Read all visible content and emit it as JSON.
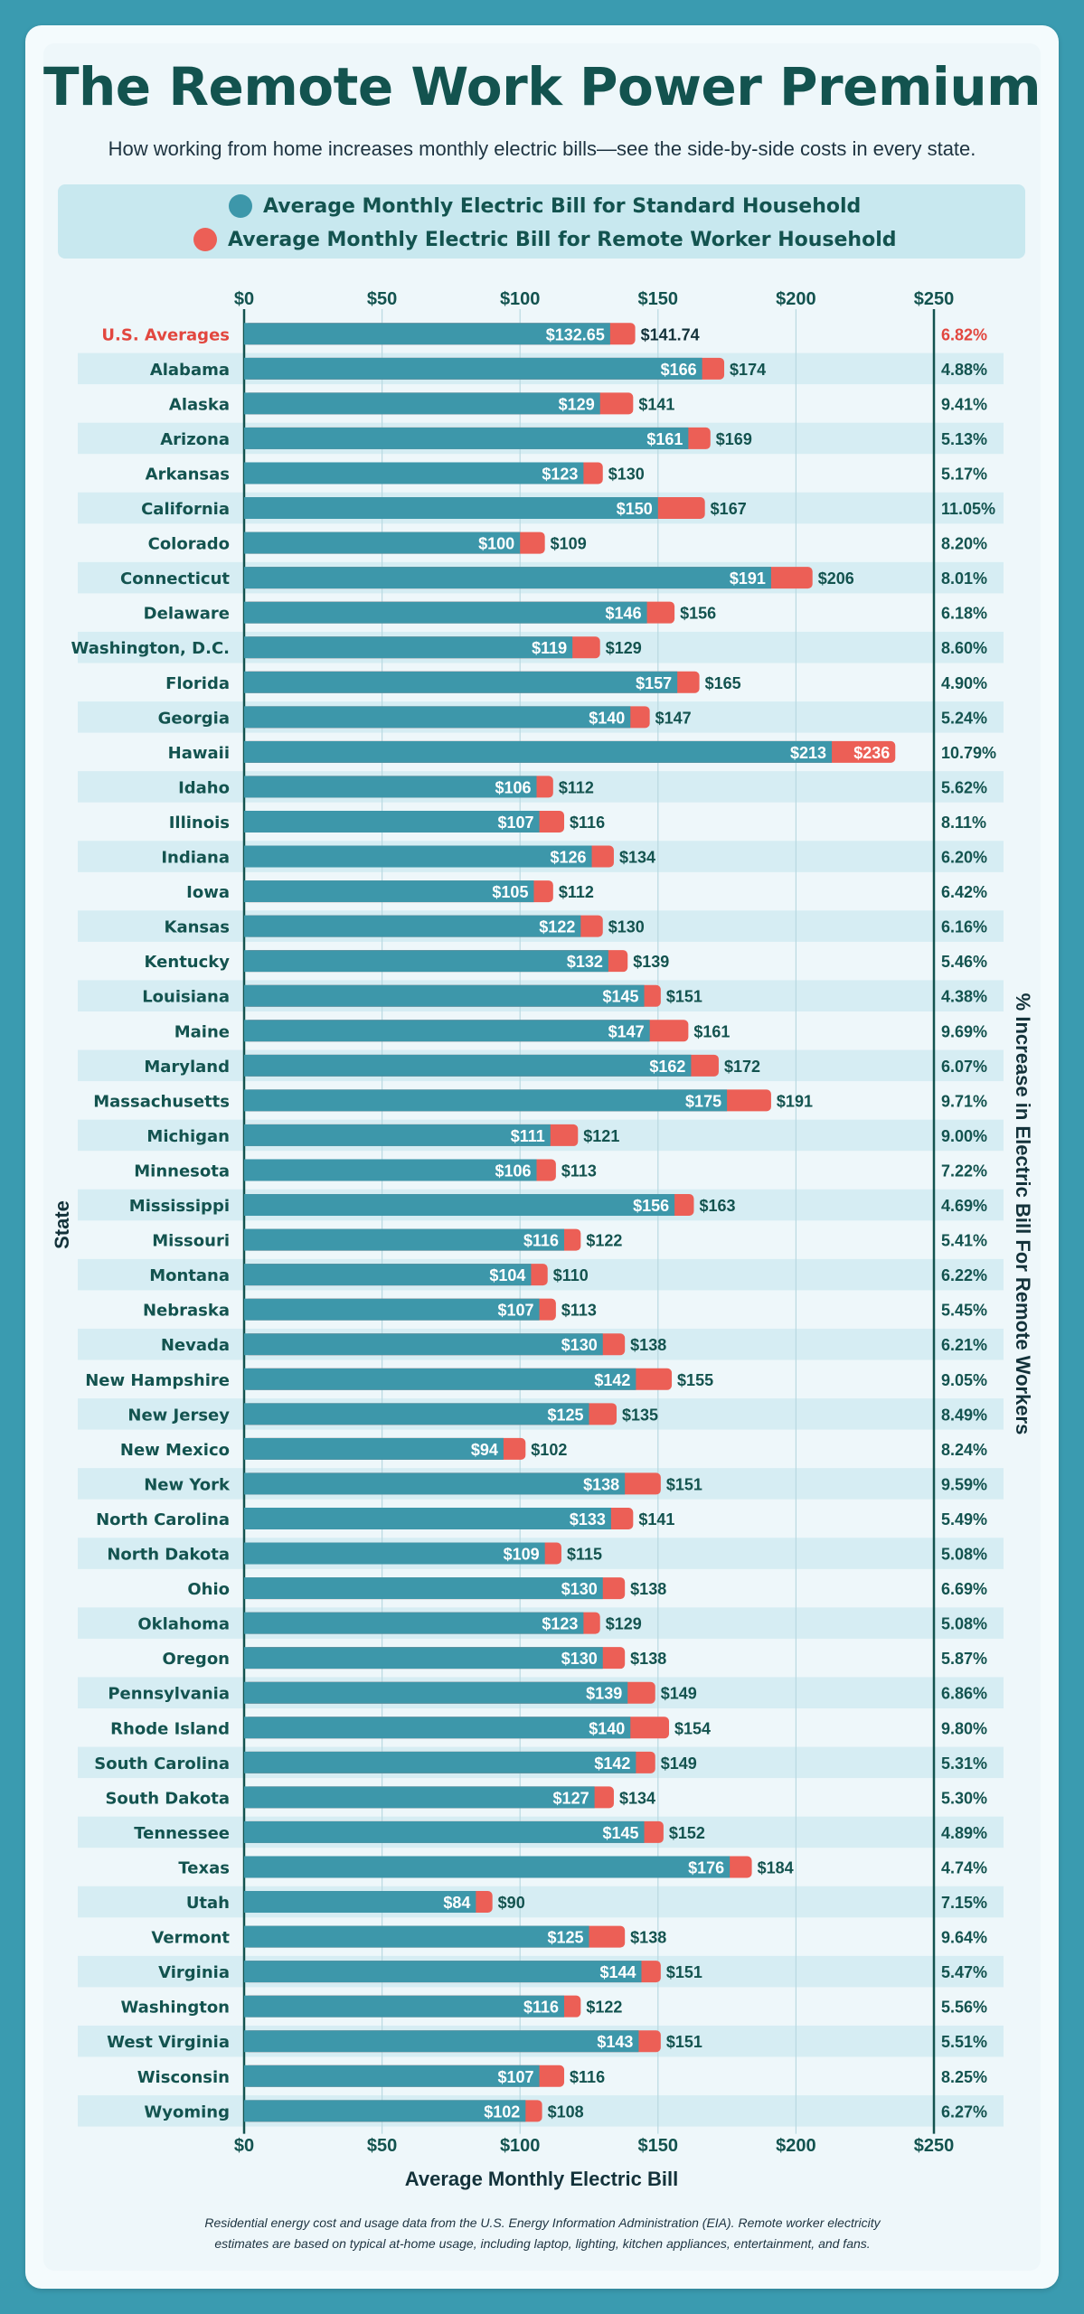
{
  "header": {
    "title": "The Remote Work Power Premium",
    "subtitle": "How working from home increases monthly electric bills—see the side-by-side costs in every state."
  },
  "colors": {
    "standard": "#3d97aa",
    "remote": "#ec5f56",
    "highlight_text": "#e2473f",
    "dark_text": "#13534f"
  },
  "footnote": {
    "line1": "Residential energy cost and usage data from the U.S. Energy Information Administration (EIA). Remote worker electricity",
    "line2": "estimates are based on typical at-home usage, including laptop, lighting, kitchen appliances, entertainment, and fans."
  },
  "chart_data": {
    "type": "bar",
    "orientation": "horizontal",
    "title": "The Remote Work Power Premium",
    "xlabel": "Average Monthly Electric Bill",
    "ylabel": "State",
    "y2label": "% Increase in Electric Bill For Remote Workers",
    "xlim": [
      0,
      250
    ],
    "xticks": [
      "$0",
      "$50",
      "$100",
      "$150",
      "$200",
      "$250"
    ],
    "xtick_values": [
      0,
      50,
      100,
      150,
      200,
      250
    ],
    "grid": true,
    "legend_placement": "top",
    "series": [
      {
        "name": "Average Monthly Electric Bill for Standard Household",
        "color": "#3d97aa"
      },
      {
        "name": "Average Monthly Electric Bill for Remote Worker Household",
        "color": "#ec5f56"
      }
    ],
    "rows": [
      {
        "state": "U.S. Averages",
        "standard": 132.65,
        "remote": 141.74,
        "std_label": "$132.65",
        "rem_label": "$141.74",
        "pct": "6.82%",
        "highlight": true
      },
      {
        "state": "Alabama",
        "standard": 166,
        "remote": 174,
        "std_label": "$166",
        "rem_label": "$174",
        "pct": "4.88%"
      },
      {
        "state": "Alaska",
        "standard": 129,
        "remote": 141,
        "std_label": "$129",
        "rem_label": "$141",
        "pct": "9.41%"
      },
      {
        "state": "Arizona",
        "standard": 161,
        "remote": 169,
        "std_label": "$161",
        "rem_label": "$169",
        "pct": "5.13%"
      },
      {
        "state": "Arkansas",
        "standard": 123,
        "remote": 130,
        "std_label": "$123",
        "rem_label": "$130",
        "pct": "5.17%"
      },
      {
        "state": "California",
        "standard": 150,
        "remote": 167,
        "std_label": "$150",
        "rem_label": "$167",
        "pct": "11.05%"
      },
      {
        "state": "Colorado",
        "standard": 100,
        "remote": 109,
        "std_label": "$100",
        "rem_label": "$109",
        "pct": "8.20%"
      },
      {
        "state": "Connecticut",
        "standard": 191,
        "remote": 206,
        "std_label": "$191",
        "rem_label": "$206",
        "pct": "8.01%"
      },
      {
        "state": "Delaware",
        "standard": 146,
        "remote": 156,
        "std_label": "$146",
        "rem_label": "$156",
        "pct": "6.18%"
      },
      {
        "state": "Washington, D.C.",
        "standard": 119,
        "remote": 129,
        "std_label": "$119",
        "rem_label": "$129",
        "pct": "8.60%"
      },
      {
        "state": "Florida",
        "standard": 157,
        "remote": 165,
        "std_label": "$157",
        "rem_label": "$165",
        "pct": "4.90%"
      },
      {
        "state": "Georgia",
        "standard": 140,
        "remote": 147,
        "std_label": "$140",
        "rem_label": "$147",
        "pct": "5.24%"
      },
      {
        "state": "Hawaii",
        "standard": 213,
        "remote": 236,
        "std_label": "$213",
        "rem_label": "$236",
        "pct": "10.79%",
        "remote_label_inside": true
      },
      {
        "state": "Idaho",
        "standard": 106,
        "remote": 112,
        "std_label": "$106",
        "rem_label": "$112",
        "pct": "5.62%"
      },
      {
        "state": "Illinois",
        "standard": 107,
        "remote": 116,
        "std_label": "$107",
        "rem_label": "$116",
        "pct": "8.11%"
      },
      {
        "state": "Indiana",
        "standard": 126,
        "remote": 134,
        "std_label": "$126",
        "rem_label": "$134",
        "pct": "6.20%"
      },
      {
        "state": "Iowa",
        "standard": 105,
        "remote": 112,
        "std_label": "$105",
        "rem_label": "$112",
        "pct": "6.42%"
      },
      {
        "state": "Kansas",
        "standard": 122,
        "remote": 130,
        "std_label": "$122",
        "rem_label": "$130",
        "pct": "6.16%"
      },
      {
        "state": "Kentucky",
        "standard": 132,
        "remote": 139,
        "std_label": "$132",
        "rem_label": "$139",
        "pct": "5.46%"
      },
      {
        "state": "Louisiana",
        "standard": 145,
        "remote": 151,
        "std_label": "$145",
        "rem_label": "$151",
        "pct": "4.38%"
      },
      {
        "state": "Maine",
        "standard": 147,
        "remote": 161,
        "std_label": "$147",
        "rem_label": "$161",
        "pct": "9.69%"
      },
      {
        "state": "Maryland",
        "standard": 162,
        "remote": 172,
        "std_label": "$162",
        "rem_label": "$172",
        "pct": "6.07%"
      },
      {
        "state": "Massachusetts",
        "standard": 175,
        "remote": 191,
        "std_label": "$175",
        "rem_label": "$191",
        "pct": "9.71%"
      },
      {
        "state": "Michigan",
        "standard": 111,
        "remote": 121,
        "std_label": "$111",
        "rem_label": "$121",
        "pct": "9.00%"
      },
      {
        "state": "Minnesota",
        "standard": 106,
        "remote": 113,
        "std_label": "$106",
        "rem_label": "$113",
        "pct": "7.22%"
      },
      {
        "state": "Mississippi",
        "standard": 156,
        "remote": 163,
        "std_label": "$156",
        "rem_label": "$163",
        "pct": "4.69%"
      },
      {
        "state": "Missouri",
        "standard": 116,
        "remote": 122,
        "std_label": "$116",
        "rem_label": "$122",
        "pct": "5.41%"
      },
      {
        "state": "Montana",
        "standard": 104,
        "remote": 110,
        "std_label": "$104",
        "rem_label": "$110",
        "pct": "6.22%"
      },
      {
        "state": "Nebraska",
        "standard": 107,
        "remote": 113,
        "std_label": "$107",
        "rem_label": "$113",
        "pct": "5.45%"
      },
      {
        "state": "Nevada",
        "standard": 130,
        "remote": 138,
        "std_label": "$130",
        "rem_label": "$138",
        "pct": "6.21%"
      },
      {
        "state": "New Hampshire",
        "standard": 142,
        "remote": 155,
        "std_label": "$142",
        "rem_label": "$155",
        "pct": "9.05%"
      },
      {
        "state": "New Jersey",
        "standard": 125,
        "remote": 135,
        "std_label": "$125",
        "rem_label": "$135",
        "pct": "8.49%"
      },
      {
        "state": "New Mexico",
        "standard": 94,
        "remote": 102,
        "std_label": "$94",
        "rem_label": "$102",
        "pct": "8.24%"
      },
      {
        "state": "New York",
        "standard": 138,
        "remote": 151,
        "std_label": "$138",
        "rem_label": "$151",
        "pct": "9.59%"
      },
      {
        "state": "North Carolina",
        "standard": 133,
        "remote": 141,
        "std_label": "$133",
        "rem_label": "$141",
        "pct": "5.49%"
      },
      {
        "state": "North Dakota",
        "standard": 109,
        "remote": 115,
        "std_label": "$109",
        "rem_label": "$115",
        "pct": "5.08%"
      },
      {
        "state": "Ohio",
        "standard": 130,
        "remote": 138,
        "std_label": "$130",
        "rem_label": "$138",
        "pct": "6.69%"
      },
      {
        "state": "Oklahoma",
        "standard": 123,
        "remote": 129,
        "std_label": "$123",
        "rem_label": "$129",
        "pct": "5.08%"
      },
      {
        "state": "Oregon",
        "standard": 130,
        "remote": 138,
        "std_label": "$130",
        "rem_label": "$138",
        "pct": "5.87%"
      },
      {
        "state": "Pennsylvania",
        "standard": 139,
        "remote": 149,
        "std_label": "$139",
        "rem_label": "$149",
        "pct": "6.86%"
      },
      {
        "state": "Rhode Island",
        "standard": 140,
        "remote": 154,
        "std_label": "$140",
        "rem_label": "$154",
        "pct": "9.80%"
      },
      {
        "state": "South Carolina",
        "standard": 142,
        "remote": 149,
        "std_label": "$142",
        "rem_label": "$149",
        "pct": "5.31%"
      },
      {
        "state": "South Dakota",
        "standard": 127,
        "remote": 134,
        "std_label": "$127",
        "rem_label": "$134",
        "pct": "5.30%"
      },
      {
        "state": "Tennessee",
        "standard": 145,
        "remote": 152,
        "std_label": "$145",
        "rem_label": "$152",
        "pct": "4.89%"
      },
      {
        "state": "Texas",
        "standard": 176,
        "remote": 184,
        "std_label": "$176",
        "rem_label": "$184",
        "pct": "4.74%"
      },
      {
        "state": "Utah",
        "standard": 84,
        "remote": 90,
        "std_label": "$84",
        "rem_label": "$90",
        "pct": "7.15%"
      },
      {
        "state": "Vermont",
        "standard": 125,
        "remote": 138,
        "std_label": "$125",
        "rem_label": "$138",
        "pct": "9.64%"
      },
      {
        "state": "Virginia",
        "standard": 144,
        "remote": 151,
        "std_label": "$144",
        "rem_label": "$151",
        "pct": "5.47%"
      },
      {
        "state": "Washington",
        "standard": 116,
        "remote": 122,
        "std_label": "$116",
        "rem_label": "$122",
        "pct": "5.56%"
      },
      {
        "state": "West Virginia",
        "standard": 143,
        "remote": 151,
        "std_label": "$143",
        "rem_label": "$151",
        "pct": "5.51%"
      },
      {
        "state": "Wisconsin",
        "standard": 107,
        "remote": 116,
        "std_label": "$107",
        "rem_label": "$116",
        "pct": "8.25%"
      },
      {
        "state": "Wyoming",
        "standard": 102,
        "remote": 108,
        "std_label": "$102",
        "rem_label": "$108",
        "pct": "6.27%"
      }
    ]
  }
}
